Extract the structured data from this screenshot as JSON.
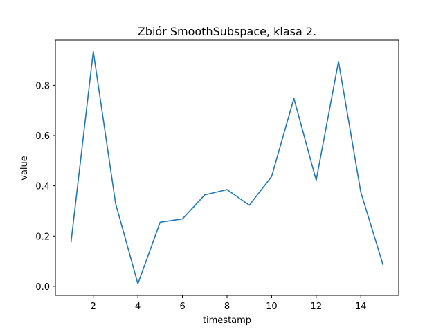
{
  "chart_data": {
    "type": "line",
    "title": "Zbiór SmoothSubspace, klasa 2.",
    "xlabel": "timestamp",
    "ylabel": "value",
    "xlim": [
      0.3,
      15.7
    ],
    "ylim": [
      -0.036,
      0.98
    ],
    "xticks": [
      2,
      4,
      6,
      8,
      10,
      12,
      14
    ],
    "yticks": [
      0.0,
      0.2,
      0.4,
      0.6,
      0.8
    ],
    "grid": false,
    "legend": "none",
    "series": [
      {
        "color": "#1f77b4",
        "x": [
          1,
          2,
          3,
          4,
          5,
          6,
          7,
          8,
          9,
          10,
          11,
          12,
          13,
          14,
          15
        ],
        "y": [
          0.175,
          0.935,
          0.33,
          0.01,
          0.255,
          0.268,
          0.364,
          0.385,
          0.323,
          0.437,
          0.748,
          0.422,
          0.895,
          0.375,
          0.085
        ]
      }
    ]
  }
}
